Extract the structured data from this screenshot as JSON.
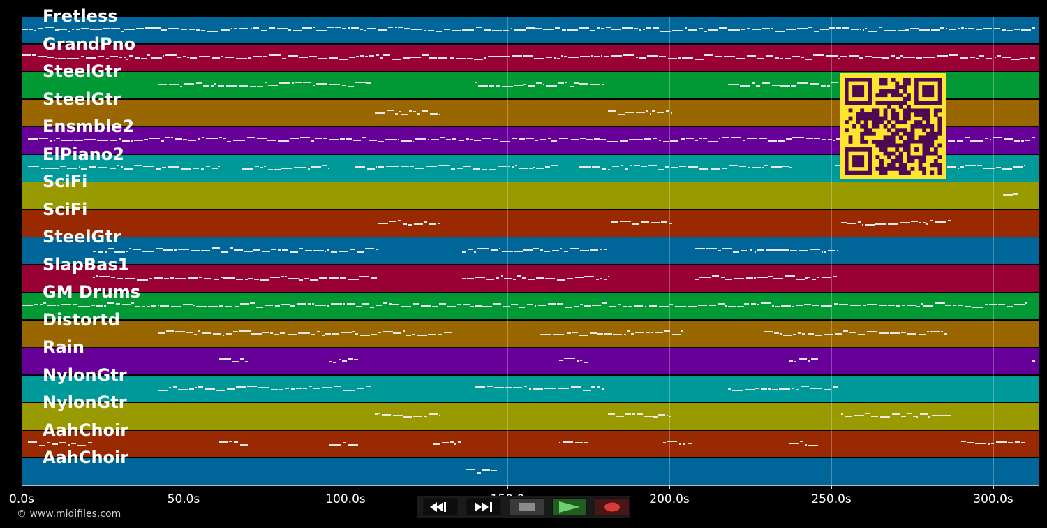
{
  "app": {
    "copyright": "© www.midifiles.com"
  },
  "tracks": [
    {
      "name": "Fretless",
      "color": "#006699"
    },
    {
      "name": "GrandPno",
      "color": "#990033"
    },
    {
      "name": "SteelGtr",
      "color": "#009933"
    },
    {
      "name": "SteelGtr",
      "color": "#996600"
    },
    {
      "name": "Ensmble2",
      "color": "#660099"
    },
    {
      "name": "ElPiano2",
      "color": "#009999"
    },
    {
      "name": "SciFi",
      "color": "#999900"
    },
    {
      "name": "SciFi",
      "color": "#992900"
    },
    {
      "name": "SteelGtr",
      "color": "#006699"
    },
    {
      "name": "SlapBas1",
      "color": "#990033"
    },
    {
      "name": "GM Drums",
      "color": "#009933"
    },
    {
      "name": "Distortd",
      "color": "#996600"
    },
    {
      "name": "Rain",
      "color": "#660099"
    },
    {
      "name": "NylonGtr",
      "color": "#009999"
    },
    {
      "name": "NylonGtr",
      "color": "#999900"
    },
    {
      "name": "AahChoir",
      "color": "#992900"
    },
    {
      "name": "AahChoir",
      "color": "#006699"
    }
  ],
  "timeline": {
    "unit": "s",
    "max_seconds": 314,
    "ticks": [
      {
        "value": 0,
        "label": "0.0s"
      },
      {
        "value": 50,
        "label": "50.0s"
      },
      {
        "value": 100,
        "label": "100.0s"
      },
      {
        "value": 150,
        "label": "150.0"
      },
      {
        "value": 200,
        "label": "200.0s"
      },
      {
        "value": 250,
        "label": "250.0s"
      },
      {
        "value": 300,
        "label": "300.0s"
      }
    ]
  },
  "note_segments": [
    [
      [
        0,
        313
      ]
    ],
    [
      [
        0,
        313
      ]
    ],
    [
      [
        42,
        108
      ],
      [
        140,
        180
      ],
      [
        218,
        252
      ]
    ],
    [
      [
        109,
        129
      ],
      [
        181,
        201
      ],
      [
        253,
        273
      ]
    ],
    [
      [
        2,
        313
      ]
    ],
    [
      [
        2,
        61
      ],
      [
        68,
        95
      ],
      [
        103,
        166
      ],
      [
        172,
        238
      ],
      [
        251,
        310
      ]
    ],
    [
      [
        303,
        308
      ]
    ],
    [
      [
        110,
        129
      ],
      [
        182,
        201
      ],
      [
        253,
        287
      ]
    ],
    [
      [
        22,
        110
      ],
      [
        136,
        181
      ],
      [
        208,
        252
      ]
    ],
    [
      [
        22,
        110
      ],
      [
        136,
        181
      ],
      [
        208,
        252
      ]
    ],
    [
      [
        0,
        310
      ]
    ],
    [
      [
        42,
        133
      ],
      [
        160,
        204
      ],
      [
        229,
        286
      ]
    ],
    [
      [
        61,
        70
      ],
      [
        95,
        104
      ],
      [
        166,
        175
      ],
      [
        237,
        246
      ],
      [
        312,
        313
      ]
    ],
    [
      [
        42,
        108
      ],
      [
        140,
        180
      ],
      [
        218,
        252
      ]
    ],
    [
      [
        109,
        129
      ],
      [
        181,
        201
      ],
      [
        253,
        287
      ]
    ],
    [
      [
        2,
        22
      ],
      [
        61,
        70
      ],
      [
        95,
        104
      ],
      [
        127,
        136
      ],
      [
        166,
        175
      ],
      [
        198,
        207
      ],
      [
        237,
        246
      ],
      [
        290,
        310
      ]
    ],
    [
      [
        137,
        147
      ]
    ]
  ],
  "qr": {
    "description_icon": "qr-code-icon",
    "bg": "#ffe52e",
    "fg": "#4d0a52"
  },
  "transport": {
    "buttons": [
      {
        "name": "rewind-button",
        "icon": "rewind-icon"
      },
      {
        "name": "fast-forward-button",
        "icon": "fast-forward-icon"
      },
      {
        "name": "stop-button",
        "icon": "stop-icon"
      },
      {
        "name": "play-button",
        "icon": "play-icon"
      },
      {
        "name": "record-button",
        "icon": "record-icon"
      }
    ]
  }
}
